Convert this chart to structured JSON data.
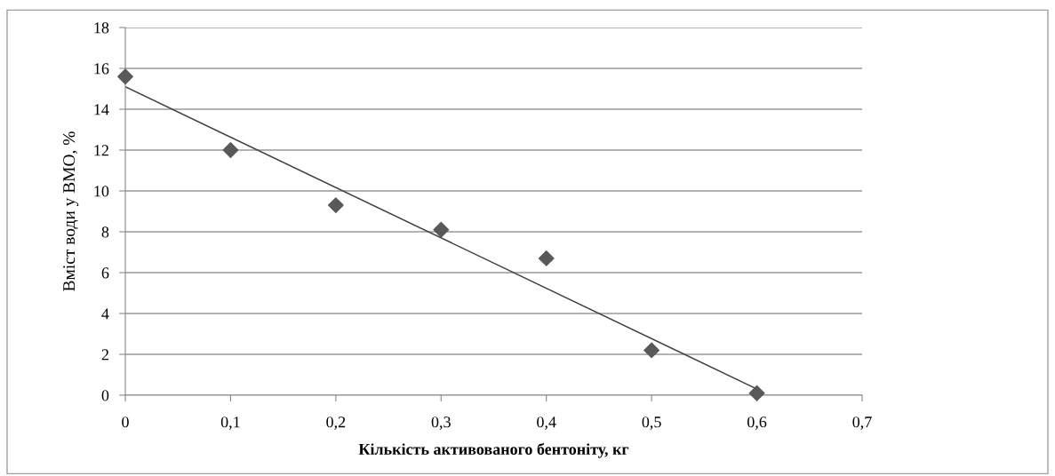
{
  "chart_data": {
    "type": "scatter",
    "xlabel": "Кількість активованого бентоніту, кг",
    "ylabel": "Вміст води у ВМО, %",
    "x": [
      0,
      0.1,
      0.2,
      0.3,
      0.4,
      0.5,
      0.6
    ],
    "series": [
      {
        "color": "#595959",
        "marker": "diamond",
        "values": [
          15.6,
          12.0,
          9.3,
          8.1,
          6.7,
          2.2,
          0.1
        ]
      },
      {
        "type": "line",
        "color": "#404040",
        "marker": "none",
        "line_style": "solid",
        "x": [
          0,
          0.6
        ],
        "values": [
          15.1,
          0.3
        ]
      }
    ],
    "xlim": [
      0,
      0.7
    ],
    "xticks": [
      0,
      {
        "value": 0.1,
        "label": "0,1"
      },
      {
        "value": 0.2,
        "label": "0,2"
      },
      {
        "value": 0.3,
        "label": "0,3"
      },
      {
        "value": 0.4,
        "label": "0,4"
      },
      {
        "value": 0.5,
        "label": "0,5"
      },
      {
        "value": 0.6,
        "label": "0,6"
      },
      {
        "value": 0.7,
        "label": "0,7"
      }
    ],
    "ylim": [
      0,
      18
    ],
    "yticks": [
      0,
      2,
      4,
      6,
      8,
      10,
      12,
      14,
      16,
      18
    ],
    "grid": "y"
  }
}
